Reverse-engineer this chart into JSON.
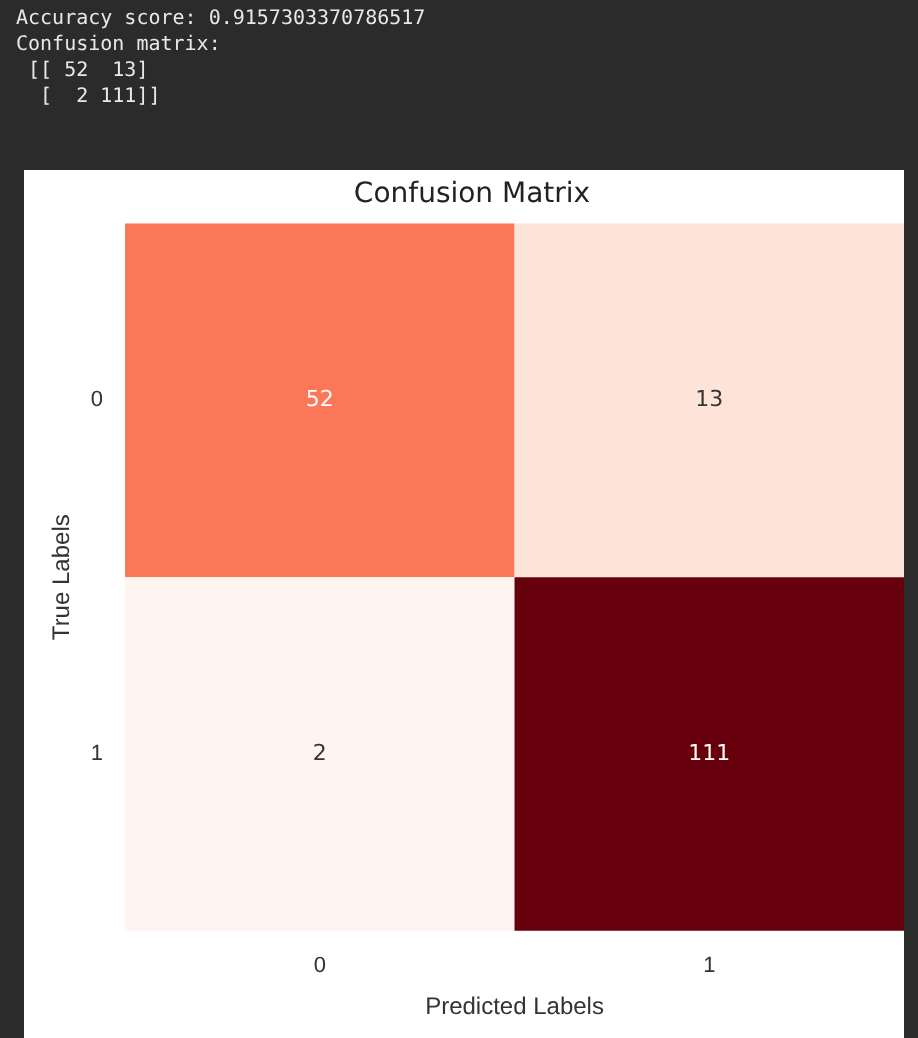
{
  "chart_data": {
    "type": "heatmap",
    "title": "Confusion Matrix",
    "xlabel": "Predicted Labels",
    "ylabel": "True Labels",
    "categories": [
      "0",
      "1"
    ],
    "y_categories": [
      "0",
      "1"
    ],
    "cells": [
      [
        52,
        13
      ],
      [
        2,
        111
      ]
    ],
    "data_labels": true,
    "annotations": [
      "Accuracy score: 0.9157303370786517",
      "Confusion matrix:",
      " [[ 52  13]",
      "  [  2 111]]"
    ]
  }
}
